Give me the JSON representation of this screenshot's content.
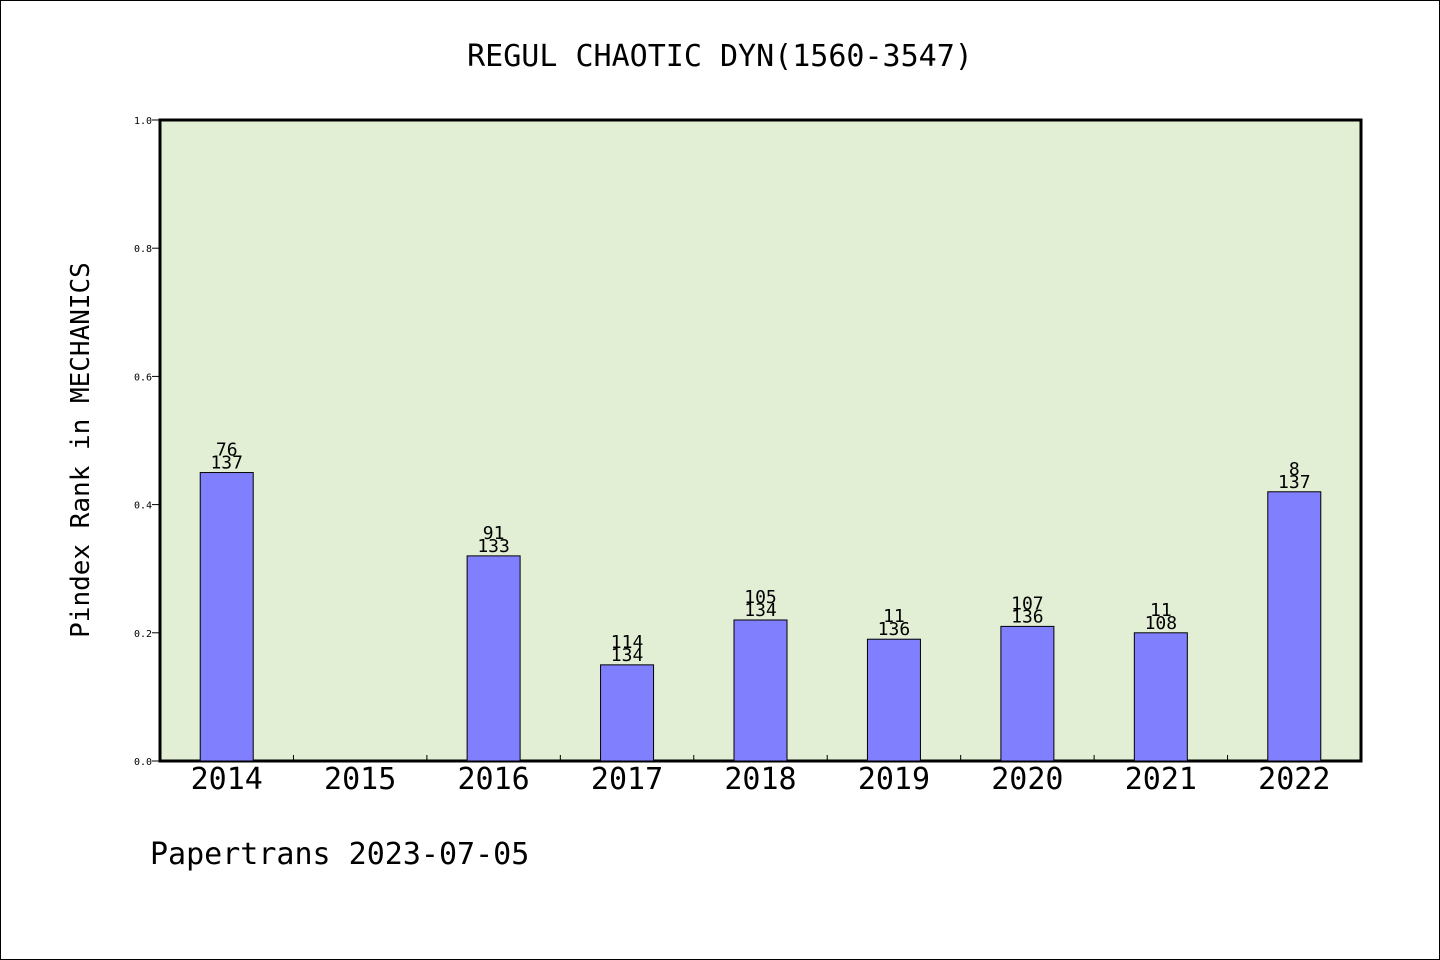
{
  "chart_data": {
    "type": "bar",
    "title": "REGUL CHAOTIC DYN(1560-3547)",
    "ylabel": "Pindex Rank in MECHANICS",
    "xlabel": "",
    "categories": [
      "2014",
      "2015",
      "2016",
      "2017",
      "2018",
      "2019",
      "2020",
      "2021",
      "2022"
    ],
    "values": [
      0.45,
      null,
      0.32,
      0.15,
      0.22,
      0.19,
      0.21,
      0.2,
      0.42
    ],
    "label_top": [
      "76",
      "",
      "91",
      "114",
      "105",
      "11",
      "107",
      "11",
      "8"
    ],
    "label_bottom": [
      "137",
      "",
      "133",
      "134",
      "134",
      "136",
      "136",
      "108",
      "137"
    ],
    "ylim": [
      0,
      1.0
    ],
    "yticks": [
      "0.0",
      "0.2",
      "0.4",
      "0.6",
      "0.8",
      "1.0"
    ],
    "grid": false,
    "legend": "none",
    "colors": {
      "bar": "#8080ff",
      "plot_background": "#e2efd5",
      "axis": "#000000"
    }
  },
  "footer": {
    "credit": "Papertrans 2023-07-05"
  }
}
